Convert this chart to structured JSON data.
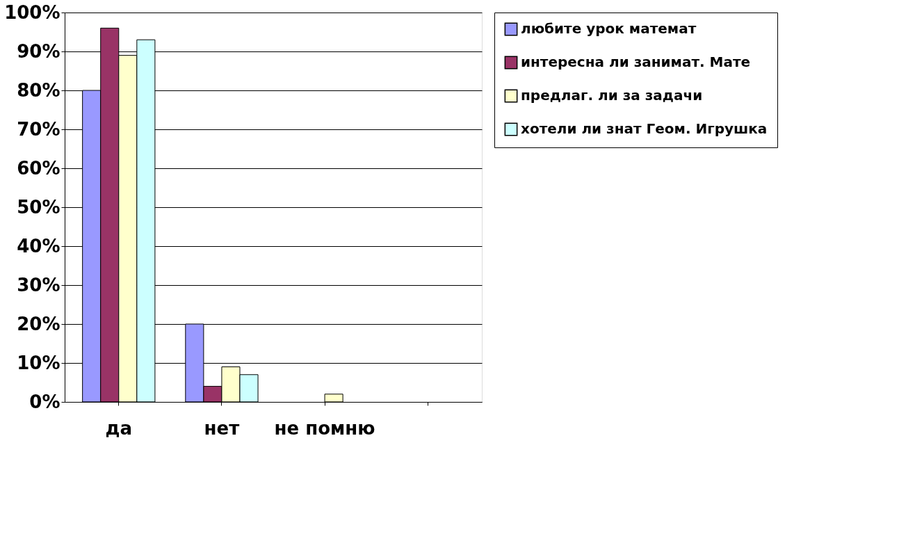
{
  "chart_data": {
    "type": "bar",
    "categories": [
      "да",
      "нет",
      "не помню",
      null
    ],
    "series": [
      {
        "name": "любите урок математ",
        "color": "#9999ff",
        "values": [
          80,
          20,
          null,
          null
        ]
      },
      {
        "name": "интересна ли занимат. Мате",
        "color": "#993366",
        "values": [
          96,
          4,
          null,
          null
        ]
      },
      {
        "name": "предлаг. ли за задачи",
        "color": "#ffffcc",
        "values": [
          89,
          9,
          2,
          null
        ]
      },
      {
        "name": "хотели ли знат Геом. Игрушка",
        "color": "#ccffff",
        "values": [
          93,
          7,
          null,
          null
        ]
      }
    ],
    "ylim": [
      0,
      100
    ],
    "yticks": [
      {
        "value": 0,
        "label": "0%"
      },
      {
        "value": 10,
        "label": "10%"
      },
      {
        "value": 20,
        "label": "20%"
      },
      {
        "value": 30,
        "label": "30%"
      },
      {
        "value": 40,
        "label": "40%"
      },
      {
        "value": 50,
        "label": "50%"
      },
      {
        "value": 60,
        "label": "60%"
      },
      {
        "value": 70,
        "label": "70%"
      },
      {
        "value": 80,
        "label": "80%"
      },
      {
        "value": 90,
        "label": "90%"
      },
      {
        "value": 100,
        "label": "100%"
      }
    ],
    "grid": "y",
    "legend": "right"
  }
}
